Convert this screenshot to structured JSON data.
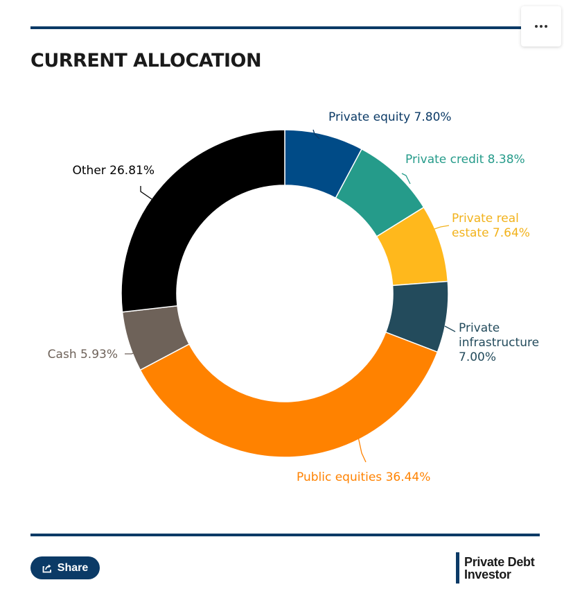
{
  "header": {
    "more_icon": "ellipsis-icon"
  },
  "chart_data": {
    "type": "pie",
    "variant": "donut",
    "title": "CURRENT ALLOCATION",
    "unit": "%",
    "start_angle_deg": 0,
    "slices": [
      {
        "label": "Private equity 7.80%",
        "value": 7.8,
        "color": "#004b87",
        "label_color": "#0b3a66"
      },
      {
        "label": "Private credit 8.38%",
        "value": 8.38,
        "color": "#259b8a",
        "label_color": "#259b8a"
      },
      {
        "label": "Private real estate 7.64%",
        "lines": [
          "Private real",
          "estate 7.64%"
        ],
        "value": 7.64,
        "color": "#ffb81c",
        "label_color": "#f2b21b"
      },
      {
        "label": "Private infrastructure 7.00%",
        "lines": [
          "Private",
          "infrastructure",
          "7.00%"
        ],
        "value": 7.0,
        "color": "#234b5c",
        "label_color": "#234b5c"
      },
      {
        "label": "Public equities 36.44%",
        "value": 36.44,
        "color": "#ff8200",
        "label_color": "#ff8200"
      },
      {
        "label": "Cash 5.93%",
        "value": 5.93,
        "color": "#6e6259",
        "label_color": "#6e6259"
      },
      {
        "label": "Other 26.81%",
        "value": 26.81,
        "color": "#000000",
        "label_color": "#000000"
      }
    ]
  },
  "footer": {
    "share_label": "Share",
    "share_icon": "share-icon",
    "brand_line1": "Private Debt",
    "brand_line2": "Investor"
  }
}
